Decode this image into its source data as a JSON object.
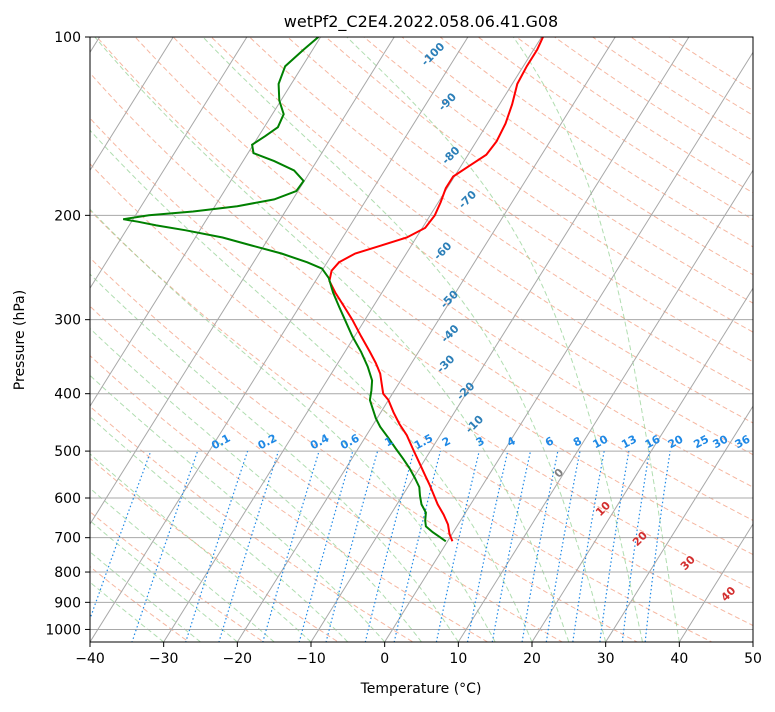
{
  "chart_data": {
    "type": "skew-t",
    "title": "wetPf2_C2E4.2022.058.06.41.G08",
    "xlabel": "Temperature (°C)",
    "ylabel": "Pressure (hPa)",
    "xlim": [
      -40,
      50
    ],
    "ylim": [
      1050,
      100
    ],
    "grid": true,
    "x_ticks": [
      -40,
      -30,
      -20,
      -10,
      0,
      10,
      20,
      30,
      40,
      50
    ],
    "y_ticks": [
      100,
      200,
      300,
      400,
      500,
      600,
      700,
      800,
      900,
      1000
    ],
    "colors": {
      "temperature": "#ff0000",
      "dewpoint": "#008000",
      "isotherm": "#a8a8a8",
      "isobar": "#a8a8a8",
      "dry_adiabat": "#f4a58a",
      "moist_adiabat": "#8fcf8f",
      "mixing_ratio": "#1e88e5",
      "hodograph_label_red": "#d32f2f",
      "height_label": "#2c7fb8",
      "zero_label": "#808080"
    },
    "series": [
      {
        "name": "Temperature",
        "points": [
          {
            "p": 710,
            "t": 9.2
          },
          {
            "p": 690,
            "t": 8.8
          },
          {
            "p": 665,
            "t": 8.6
          },
          {
            "p": 640,
            "t": 8.0
          },
          {
            "p": 615,
            "t": 7.2
          },
          {
            "p": 590,
            "t": 6.6
          },
          {
            "p": 570,
            "t": 6.1
          },
          {
            "p": 550,
            "t": 5.5
          },
          {
            "p": 520,
            "t": 4.6
          },
          {
            "p": 495,
            "t": 3.8
          },
          {
            "p": 470,
            "t": 3.0
          },
          {
            "p": 450,
            "t": 2.0
          },
          {
            "p": 430,
            "t": 1.2
          },
          {
            "p": 410,
            "t": 0.5
          },
          {
            "p": 400,
            "t": -0.2
          },
          {
            "p": 385,
            "t": -0.4
          },
          {
            "p": 370,
            "t": -0.6
          },
          {
            "p": 355,
            "t": -1.2
          },
          {
            "p": 340,
            "t": -2.0
          },
          {
            "p": 320,
            "t": -3.2
          },
          {
            "p": 300,
            "t": -4.4
          },
          {
            "p": 285,
            "t": -5.5
          },
          {
            "p": 270,
            "t": -6.7
          },
          {
            "p": 258,
            "t": -7.5
          },
          {
            "p": 248,
            "t": -7.2
          },
          {
            "p": 240,
            "t": -6.2
          },
          {
            "p": 232,
            "t": -4.0
          },
          {
            "p": 225,
            "t": -0.5
          },
          {
            "p": 218,
            "t": 3.0
          },
          {
            "p": 210,
            "t": 5.5
          },
          {
            "p": 200,
            "t": 6.8
          },
          {
            "p": 190,
            "t": 7.6
          },
          {
            "p": 180,
            "t": 8.3
          },
          {
            "p": 172,
            "t": 9.3
          },
          {
            "p": 165,
            "t": 11.5
          },
          {
            "p": 158,
            "t": 13.8
          },
          {
            "p": 150,
            "t": 15.2
          },
          {
            "p": 140,
            "t": 16.4
          },
          {
            "p": 130,
            "t": 17.3
          },
          {
            "p": 120,
            "t": 18.0
          },
          {
            "p": 112,
            "t": 19.3
          },
          {
            "p": 105,
            "t": 20.7
          },
          {
            "p": 100,
            "t": 21.5
          }
        ]
      },
      {
        "name": "Dewpoint",
        "points": [
          {
            "p": 710,
            "t": 8.3
          },
          {
            "p": 700,
            "t": 7.6
          },
          {
            "p": 685,
            "t": 6.5
          },
          {
            "p": 670,
            "t": 5.6
          },
          {
            "p": 655,
            "t": 5.5
          },
          {
            "p": 635,
            "t": 5.6
          },
          {
            "p": 615,
            "t": 5.0
          },
          {
            "p": 595,
            "t": 4.8
          },
          {
            "p": 575,
            "t": 4.7
          },
          {
            "p": 555,
            "t": 4.1
          },
          {
            "p": 535,
            "t": 3.4
          },
          {
            "p": 515,
            "t": 2.5
          },
          {
            "p": 495,
            "t": 1.5
          },
          {
            "p": 475,
            "t": 0.5
          },
          {
            "p": 455,
            "t": -0.6
          },
          {
            "p": 440,
            "t": -1.2
          },
          {
            "p": 425,
            "t": -1.6
          },
          {
            "p": 410,
            "t": -2.0
          },
          {
            "p": 395,
            "t": -1.8
          },
          {
            "p": 380,
            "t": -1.7
          },
          {
            "p": 360,
            "t": -2.3
          },
          {
            "p": 340,
            "t": -3.2
          },
          {
            "p": 320,
            "t": -4.4
          },
          {
            "p": 300,
            "t": -5.4
          },
          {
            "p": 285,
            "t": -6.2
          },
          {
            "p": 270,
            "t": -7.0
          },
          {
            "p": 255,
            "t": -7.6
          },
          {
            "p": 246,
            "t": -8.5
          },
          {
            "p": 240,
            "t": -10.5
          },
          {
            "p": 232,
            "t": -14.0
          },
          {
            "p": 225,
            "t": -18.0
          },
          {
            "p": 218,
            "t": -22.0
          },
          {
            "p": 212,
            "t": -27.0
          },
          {
            "p": 208,
            "t": -31.0
          },
          {
            "p": 205,
            "t": -33.5
          },
          {
            "p": 203,
            "t": -35.5
          },
          {
            "p": 200,
            "t": -32.0
          },
          {
            "p": 197,
            "t": -26.0
          },
          {
            "p": 193,
            "t": -20.0
          },
          {
            "p": 188,
            "t": -15.0
          },
          {
            "p": 182,
            "t": -12.0
          },
          {
            "p": 175,
            "t": -11.0
          },
          {
            "p": 168,
            "t": -12.3
          },
          {
            "p": 162,
            "t": -15.0
          },
          {
            "p": 157,
            "t": -17.8
          },
          {
            "p": 152,
            "t": -18.0
          },
          {
            "p": 147,
            "t": -16.2
          },
          {
            "p": 142,
            "t": -14.5
          },
          {
            "p": 135,
            "t": -13.7
          },
          {
            "p": 128,
            "t": -14.3
          },
          {
            "p": 120,
            "t": -14.4
          },
          {
            "p": 112,
            "t": -13.5
          },
          {
            "p": 105,
            "t": -11.0
          },
          {
            "p": 100,
            "t": -9.0
          }
        ]
      }
    ],
    "height_labels": [
      {
        "text": "-100",
        "p": 108,
        "t": -40
      },
      {
        "text": "-90",
        "p": 130,
        "t": -34
      },
      {
        "text": "-80",
        "p": 160,
        "t": -29
      },
      {
        "text": "-70",
        "p": 190,
        "t": -23
      },
      {
        "text": "-60",
        "p": 232,
        "t": -22
      },
      {
        "text": "-50",
        "p": 280,
        "t": -17
      },
      {
        "text": "-40",
        "p": 320,
        "t": -14
      },
      {
        "text": "-30",
        "p": 360,
        "t": -12
      },
      {
        "text": "-20",
        "p": 400,
        "t": -7
      },
      {
        "text": "-10",
        "p": 455,
        "t": -3
      }
    ],
    "mixing_ratio_labels": [
      "0.1",
      "0.2",
      "0.4",
      "0.6",
      "1",
      "1.5",
      "2",
      "3",
      "4",
      "6",
      "8",
      "10",
      "13",
      "16",
      "20",
      "25",
      "30",
      "36"
    ],
    "mixing_ratio_label_x": [
      -22,
      -15.7,
      -8.6,
      -4.5,
      0.8,
      5.5,
      8.6,
      13.2,
      17.4,
      22.6,
      26.4,
      29.5,
      33.4,
      36.6,
      39.7,
      43.2,
      45.8,
      48.8
    ],
    "moist_adiabat_labels": [
      {
        "text": "0",
        "p": 550,
        "t": 24.0,
        "color": "#808080"
      },
      {
        "text": "10",
        "p": 632,
        "t": 30.0,
        "color": "#d32f2f"
      },
      {
        "text": "20",
        "p": 710,
        "t": 35.0,
        "color": "#d32f2f"
      },
      {
        "text": "30",
        "p": 780,
        "t": 41.5,
        "color": "#d32f2f"
      },
      {
        "text": "40",
        "p": 880,
        "t": 47.0,
        "color": "#d32f2f"
      }
    ]
  }
}
